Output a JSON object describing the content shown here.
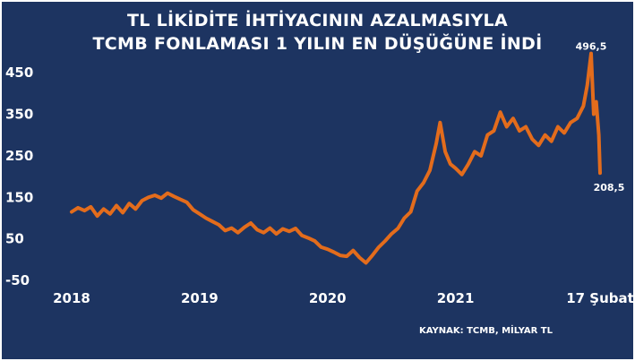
{
  "chart_data": {
    "type": "line",
    "title": "TL LİKİDİTE İHTİYACININ AZALMASIYLA",
    "subtitle": "TCMB FONLAMASI 1 YILIN EN DÜŞÜĞÜNE İNDİ",
    "source": "KAYNAK: TCMB, MİLYAR TL",
    "ylim": [
      -50,
      500
    ],
    "yticks": [
      "450",
      "350",
      "250",
      "150",
      "50",
      "-50"
    ],
    "xticks": [
      {
        "label": "2018",
        "x": 2018.0
      },
      {
        "label": "2019",
        "x": 2019.0
      },
      {
        "label": "2020",
        "x": 2020.0
      },
      {
        "label": "2021",
        "x": 2021.0
      },
      {
        "label": "17 Şubat",
        "x": 2022.13
      }
    ],
    "xlim": [
      2018.0,
      2022.13
    ],
    "colors": {
      "line": "#e36c1c",
      "background": "#1d3461",
      "text": "#ffffff"
    },
    "series": [
      {
        "points": [
          [
            2018.0,
            115
          ],
          [
            2018.05,
            125
          ],
          [
            2018.1,
            118
          ],
          [
            2018.15,
            127
          ],
          [
            2018.2,
            105
          ],
          [
            2018.25,
            122
          ],
          [
            2018.3,
            110
          ],
          [
            2018.35,
            130
          ],
          [
            2018.4,
            113
          ],
          [
            2018.45,
            135
          ],
          [
            2018.5,
            122
          ],
          [
            2018.55,
            142
          ],
          [
            2018.6,
            150
          ],
          [
            2018.65,
            155
          ],
          [
            2018.7,
            148
          ],
          [
            2018.75,
            160
          ],
          [
            2018.8,
            152
          ],
          [
            2018.85,
            145
          ],
          [
            2018.9,
            138
          ],
          [
            2018.95,
            120
          ],
          [
            2019.0,
            110
          ],
          [
            2019.05,
            100
          ],
          [
            2019.1,
            92
          ],
          [
            2019.15,
            84
          ],
          [
            2019.2,
            70
          ],
          [
            2019.25,
            76
          ],
          [
            2019.3,
            65
          ],
          [
            2019.35,
            78
          ],
          [
            2019.4,
            88
          ],
          [
            2019.45,
            72
          ],
          [
            2019.5,
            65
          ],
          [
            2019.55,
            76
          ],
          [
            2019.6,
            62
          ],
          [
            2019.65,
            74
          ],
          [
            2019.7,
            68
          ],
          [
            2019.75,
            75
          ],
          [
            2019.8,
            58
          ],
          [
            2019.85,
            52
          ],
          [
            2019.9,
            45
          ],
          [
            2019.95,
            30
          ],
          [
            2020.0,
            25
          ],
          [
            2020.05,
            18
          ],
          [
            2020.1,
            10
          ],
          [
            2020.15,
            8
          ],
          [
            2020.2,
            22
          ],
          [
            2020.25,
            5
          ],
          [
            2020.3,
            -8
          ],
          [
            2020.35,
            10
          ],
          [
            2020.4,
            30
          ],
          [
            2020.45,
            45
          ],
          [
            2020.5,
            62
          ],
          [
            2020.55,
            75
          ],
          [
            2020.6,
            100
          ],
          [
            2020.65,
            115
          ],
          [
            2020.7,
            165
          ],
          [
            2020.75,
            185
          ],
          [
            2020.8,
            215
          ],
          [
            2020.85,
            280
          ],
          [
            2020.88,
            330
          ],
          [
            2020.92,
            260
          ],
          [
            2020.96,
            230
          ],
          [
            2021.0,
            220
          ],
          [
            2021.05,
            205
          ],
          [
            2021.1,
            230
          ],
          [
            2021.15,
            260
          ],
          [
            2021.2,
            250
          ],
          [
            2021.25,
            300
          ],
          [
            2021.3,
            310
          ],
          [
            2021.35,
            355
          ],
          [
            2021.4,
            320
          ],
          [
            2021.45,
            340
          ],
          [
            2021.5,
            310
          ],
          [
            2021.55,
            320
          ],
          [
            2021.6,
            290
          ],
          [
            2021.65,
            275
          ],
          [
            2021.7,
            300
          ],
          [
            2021.75,
            285
          ],
          [
            2021.8,
            320
          ],
          [
            2021.85,
            305
          ],
          [
            2021.9,
            330
          ],
          [
            2021.95,
            340
          ],
          [
            2022.0,
            370
          ],
          [
            2022.03,
            420
          ],
          [
            2022.06,
            496.5
          ],
          [
            2022.08,
            350
          ],
          [
            2022.1,
            380
          ],
          [
            2022.12,
            300
          ],
          [
            2022.13,
            208.5
          ]
        ]
      }
    ],
    "annotations": [
      {
        "label": "496,5",
        "x": 2022.06,
        "y": 496.5
      },
      {
        "label": "208,5",
        "x": 2022.13,
        "y": 208.5
      }
    ]
  }
}
